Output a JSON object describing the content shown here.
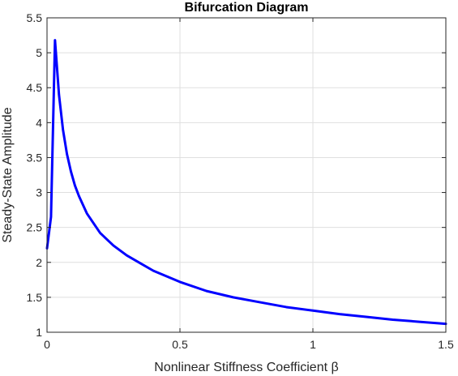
{
  "chart_data": {
    "type": "line",
    "title": "Bifurcation Diagram",
    "xlabel": "Nonlinear Stiffness Coefficient β",
    "ylabel": "Steady-State Amplitude",
    "xlim": [
      0,
      1.5
    ],
    "ylim": [
      1,
      5.5
    ],
    "xticks": [
      0,
      0.5,
      1,
      1.5
    ],
    "xtick_labels": [
      "0",
      "0.5",
      "1",
      "1.5"
    ],
    "yticks": [
      1,
      1.5,
      2,
      2.5,
      3,
      3.5,
      4,
      4.5,
      5,
      5.5
    ],
    "ytick_labels": [
      "1",
      "1.5",
      "2",
      "2.5",
      "3",
      "3.5",
      "4",
      "4.5",
      "5",
      "5.5"
    ],
    "grid": true,
    "legend": "none",
    "series": [
      {
        "color": "#0000ff",
        "x": [
          0,
          0.015,
          0.03,
          0.045,
          0.06,
          0.075,
          0.09,
          0.105,
          0.12,
          0.15,
          0.2,
          0.25,
          0.3,
          0.35,
          0.4,
          0.5,
          0.6,
          0.7,
          0.8,
          0.9,
          1.0,
          1.1,
          1.2,
          1.3,
          1.4,
          1.5
        ],
        "y": [
          2.2,
          2.65,
          5.18,
          4.4,
          3.9,
          3.55,
          3.3,
          3.1,
          2.95,
          2.7,
          2.42,
          2.24,
          2.1,
          1.99,
          1.88,
          1.72,
          1.59,
          1.5,
          1.43,
          1.36,
          1.31,
          1.26,
          1.22,
          1.18,
          1.15,
          1.12
        ]
      }
    ]
  }
}
